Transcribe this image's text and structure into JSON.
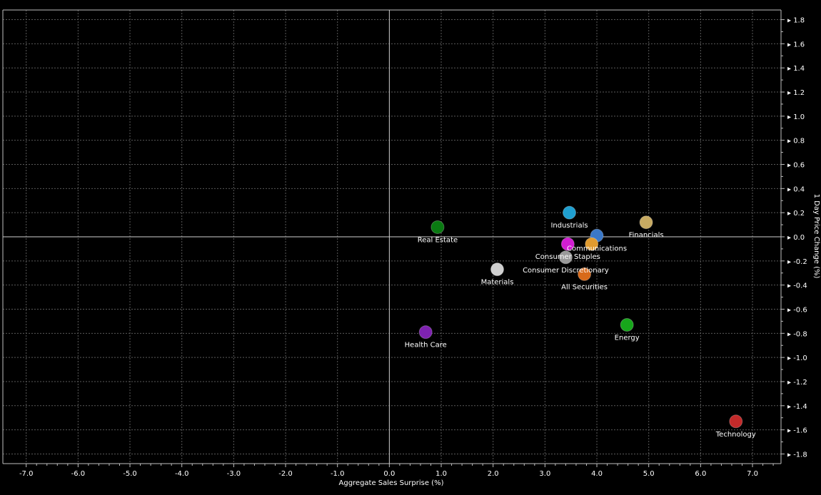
{
  "chart_data": {
    "type": "scatter",
    "title": "",
    "xlabel": "Aggregate Sales Surprise (%)",
    "ylabel": "1 Day Price Change (%)",
    "xlim": [
      -7.45,
      7.55
    ],
    "ylim": [
      -1.88,
      1.88
    ],
    "x_ticks": [
      -7.0,
      -6.0,
      -5.0,
      -4.0,
      -3.0,
      -2.0,
      -1.0,
      0.0,
      1.0,
      2.0,
      3.0,
      4.0,
      5.0,
      6.0,
      7.0
    ],
    "y_ticks": [
      1.8,
      1.6,
      1.4,
      1.2,
      1.0,
      0.8,
      0.6,
      0.4,
      0.2,
      0.0,
      -0.2,
      -0.4,
      -0.6,
      -0.8,
      -1.0,
      -1.2,
      -1.4,
      -1.6,
      -1.8
    ],
    "x_tick_labels": [
      "-7.0",
      "-6.0",
      "-5.0",
      "-4.0",
      "-3.0",
      "-2.0",
      "-1.0",
      "0.0",
      "1.0",
      "2.0",
      "3.0",
      "4.0",
      "5.0",
      "6.0",
      "7.0"
    ],
    "y_tick_labels": [
      "1.8",
      "1.6",
      "1.4",
      "1.2",
      "1.0",
      "0.8",
      "0.6",
      "0.4",
      "0.2",
      "0.0",
      "-0.2",
      "-0.4",
      "-0.6",
      "-0.8",
      "-1.0",
      "-1.2",
      "-1.4",
      "-1.6",
      "-1.8"
    ],
    "grid": true,
    "y_axis_side": "right",
    "points": [
      {
        "label": "Real Estate",
        "x": 0.93,
        "y": 0.08,
        "color": "#0a7a12"
      },
      {
        "label": "Industrials",
        "x": 3.47,
        "y": 0.2,
        "color": "#1f9fd0"
      },
      {
        "label": "Financials",
        "x": 4.95,
        "y": 0.12,
        "color": "#c7aa62"
      },
      {
        "label": "Communications",
        "x": 4.0,
        "y": 0.01,
        "color": "#3a78c8"
      },
      {
        "label": "Consumer Staples",
        "x": 3.44,
        "y": -0.06,
        "color": "#d21ed2"
      },
      {
        "label": "Consumer Discretionary",
        "x": 3.4,
        "y": -0.17,
        "color": "#9a9a9a"
      },
      {
        "label": "Materials",
        "x": 2.08,
        "y": -0.27,
        "color": "#cfcfcf"
      },
      {
        "label": "All Securities",
        "x": 3.76,
        "y": -0.31,
        "color": "#d86a1a"
      },
      {
        "label": "Health Care",
        "x": 0.7,
        "y": -0.79,
        "color": "#7e22b0"
      },
      {
        "label": "Energy",
        "x": 4.58,
        "y": -0.73,
        "color": "#17a61b"
      },
      {
        "label": "Technology",
        "x": 6.68,
        "y": -1.53,
        "color": "#c32a2a"
      },
      {
        "label": "",
        "x": 3.9,
        "y": -0.06,
        "color": "#e09b2f"
      }
    ],
    "colors": {
      "background": "#000000",
      "grid": "#5a5a5a",
      "axis": "#bfbfbf",
      "text": "#ffffff"
    }
  }
}
